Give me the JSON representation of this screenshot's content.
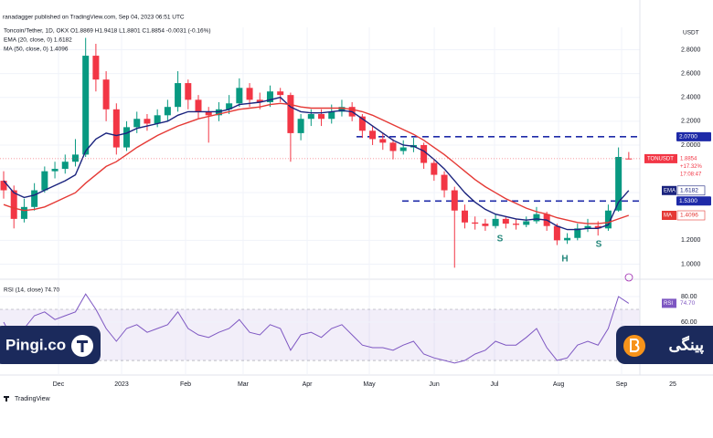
{
  "header": {
    "publisher": "ranadagger published on TradingView.com, Sep 04, 2023 06:51 UTC",
    "symbol": "Toncoin/Tether, 1D, OKX  O1.8869  H1.9418  L1.8801  C1.8854  -0.0031 (-0.16%)",
    "ema": "EMA (20, close, 0)  1.6182",
    "ma": "MA (50, close, 0)  1.4096",
    "currency": "USDT"
  },
  "chart_data": {
    "type": "candlestick",
    "up_color": "#089981",
    "down_color": "#f23645",
    "grid": true,
    "xlim": [
      -0.357,
      69.22
    ],
    "xticks": [
      {
        "value": 5.35,
        "label": "Dec"
      },
      {
        "value": 11.51,
        "label": "2023"
      },
      {
        "value": 17.75,
        "label": "Feb"
      },
      {
        "value": 23.37,
        "label": "Mar"
      },
      {
        "value": 29.62,
        "label": "Apr"
      },
      {
        "value": 35.68,
        "label": "May"
      },
      {
        "value": 42.02,
        "label": "Jun"
      },
      {
        "value": 47.9,
        "label": "Jul"
      },
      {
        "value": 54.15,
        "label": "Aug"
      },
      {
        "value": 60.3,
        "label": "Sep"
      },
      {
        "value": 65.3,
        "label": "25"
      }
    ],
    "ylim": [
      0.881,
      2.988
    ],
    "yticks": [
      {
        "value": 2.8,
        "label": "2.8000"
      },
      {
        "value": 2.6,
        "label": "2.6000"
      },
      {
        "value": 2.4,
        "label": "2.4000"
      },
      {
        "value": 2.2,
        "label": "2.2000"
      },
      {
        "value": 2,
        "label": "2.0000"
      },
      {
        "value": 1.8,
        "label": "1.8000"
      },
      {
        "value": 1.6,
        "label": "1.6000"
      },
      {
        "value": 1.4,
        "label": "1.4000"
      },
      {
        "value": 1.2,
        "label": "1.2000"
      },
      {
        "value": 1,
        "label": "1.0000"
      }
    ],
    "candles": [
      [
        1.7,
        1.78,
        1.55,
        1.62
      ],
      [
        1.62,
        1.66,
        1.3,
        1.38
      ],
      [
        1.38,
        1.55,
        1.35,
        1.48
      ],
      [
        1.48,
        1.68,
        1.45,
        1.62
      ],
      [
        1.62,
        1.82,
        1.6,
        1.78
      ],
      [
        1.78,
        1.86,
        1.72,
        1.8
      ],
      [
        1.8,
        1.92,
        1.76,
        1.86
      ],
      [
        1.86,
        2.05,
        1.82,
        1.92
      ],
      [
        1.92,
        2.9,
        1.9,
        2.75
      ],
      [
        2.75,
        2.85,
        2.45,
        2.55
      ],
      [
        2.55,
        2.62,
        2.2,
        2.3
      ],
      [
        2.3,
        2.35,
        1.92,
        1.98
      ],
      [
        1.98,
        2.2,
        1.95,
        2.15
      ],
      [
        2.15,
        2.28,
        2.1,
        2.22
      ],
      [
        2.22,
        2.26,
        2.12,
        2.18
      ],
      [
        2.18,
        2.3,
        2.15,
        2.25
      ],
      [
        2.25,
        2.38,
        2.2,
        2.32
      ],
      [
        2.32,
        2.62,
        2.28,
        2.52
      ],
      [
        2.52,
        2.55,
        2.3,
        2.38
      ],
      [
        2.38,
        2.42,
        2.22,
        2.28
      ],
      [
        2.28,
        2.32,
        2.02,
        2.25
      ],
      [
        2.25,
        2.36,
        2.2,
        2.3
      ],
      [
        2.3,
        2.42,
        2.26,
        2.35
      ],
      [
        2.35,
        2.56,
        2.32,
        2.48
      ],
      [
        2.48,
        2.52,
        2.32,
        2.38
      ],
      [
        2.38,
        2.44,
        2.3,
        2.36
      ],
      [
        2.36,
        2.5,
        2.32,
        2.45
      ],
      [
        2.45,
        2.48,
        2.36,
        2.42
      ],
      [
        2.42,
        2.44,
        1.86,
        2.1
      ],
      [
        2.1,
        2.26,
        2.04,
        2.22
      ],
      [
        2.22,
        2.3,
        2.16,
        2.26
      ],
      [
        2.26,
        2.3,
        2.16,
        2.22
      ],
      [
        2.22,
        2.34,
        2.18,
        2.28
      ],
      [
        2.28,
        2.38,
        2.24,
        2.32
      ],
      [
        2.32,
        2.36,
        2.2,
        2.24
      ],
      [
        2.24,
        2.26,
        2.06,
        2.12
      ],
      [
        2.12,
        2.16,
        2.0,
        2.05
      ],
      [
        2.05,
        2.1,
        1.96,
        2.02
      ],
      [
        2.02,
        2.05,
        1.88,
        1.95
      ],
      [
        1.95,
        2.04,
        1.92,
        1.98
      ],
      [
        1.98,
        2.06,
        1.94,
        2.0
      ],
      [
        2.0,
        2.02,
        1.8,
        1.85
      ],
      [
        1.85,
        1.88,
        1.7,
        1.75
      ],
      [
        1.75,
        1.78,
        1.56,
        1.62
      ],
      [
        1.62,
        1.65,
        0.97,
        1.45
      ],
      [
        1.45,
        1.5,
        1.3,
        1.35
      ],
      [
        1.35,
        1.4,
        1.29,
        1.34
      ],
      [
        1.34,
        1.38,
        1.28,
        1.32
      ],
      [
        1.32,
        1.42,
        1.3,
        1.38
      ],
      [
        1.38,
        1.4,
        1.3,
        1.34
      ],
      [
        1.34,
        1.38,
        1.29,
        1.33
      ],
      [
        1.33,
        1.4,
        1.31,
        1.36
      ],
      [
        1.36,
        1.48,
        1.34,
        1.42
      ],
      [
        1.42,
        1.44,
        1.28,
        1.32
      ],
      [
        1.32,
        1.34,
        1.16,
        1.2
      ],
      [
        1.2,
        1.26,
        1.17,
        1.22
      ],
      [
        1.22,
        1.34,
        1.2,
        1.3
      ],
      [
        1.3,
        1.38,
        1.27,
        1.32
      ],
      [
        1.32,
        1.36,
        1.24,
        1.3
      ],
      [
        1.3,
        1.5,
        1.28,
        1.45
      ],
      [
        1.45,
        1.98,
        1.44,
        1.9
      ],
      [
        1.8869,
        1.9418,
        1.8801,
        1.8854
      ]
    ],
    "series": [
      {
        "name": "EMA",
        "color": "#1a237e",
        "values": [
          1.7,
          1.6,
          1.56,
          1.58,
          1.62,
          1.66,
          1.7,
          1.75,
          1.95,
          2.05,
          2.1,
          2.08,
          2.1,
          2.14,
          2.16,
          2.18,
          2.2,
          2.25,
          2.28,
          2.28,
          2.28,
          2.28,
          2.3,
          2.34,
          2.35,
          2.36,
          2.38,
          2.4,
          2.32,
          2.28,
          2.27,
          2.27,
          2.28,
          2.29,
          2.28,
          2.22,
          2.16,
          2.1,
          2.04,
          2.0,
          1.99,
          1.95,
          1.88,
          1.8,
          1.7,
          1.6,
          1.52,
          1.46,
          1.42,
          1.4,
          1.38,
          1.37,
          1.38,
          1.37,
          1.32,
          1.29,
          1.29,
          1.3,
          1.3,
          1.33,
          1.52,
          1.6182
        ],
        "value_label": "1.6182"
      },
      {
        "name": "MA",
        "color": "#e53935",
        "values": [
          1.5,
          1.47,
          1.45,
          1.46,
          1.48,
          1.52,
          1.56,
          1.6,
          1.68,
          1.75,
          1.82,
          1.86,
          1.92,
          1.98,
          2.03,
          2.08,
          2.12,
          2.16,
          2.19,
          2.22,
          2.24,
          2.26,
          2.28,
          2.3,
          2.31,
          2.32,
          2.34,
          2.35,
          2.34,
          2.32,
          2.31,
          2.31,
          2.31,
          2.31,
          2.3,
          2.28,
          2.25,
          2.21,
          2.17,
          2.13,
          2.09,
          2.04,
          1.98,
          1.92,
          1.85,
          1.78,
          1.71,
          1.65,
          1.6,
          1.55,
          1.51,
          1.47,
          1.44,
          1.42,
          1.39,
          1.37,
          1.35,
          1.34,
          1.34,
          1.35,
          1.38,
          1.4096
        ],
        "value_label": "1.4096"
      }
    ],
    "levels": [
      {
        "value": 2.07,
        "label": "2.0700",
        "color": "#1e2aa8"
      },
      {
        "value": 1.53,
        "label": "1.5300",
        "color": "#1e2aa8"
      }
    ],
    "last_price": {
      "symbol": "TONUSDT",
      "value": 1.8854,
      "label": "1.8854",
      "change": "+17.32%",
      "countdown": "17:08:47",
      "color": "#f23645"
    },
    "annotations": [
      "S",
      "H",
      "S"
    ],
    "rsi": {
      "title": "RSI (14, close)  74.70",
      "name": "RSI",
      "color": "#7e57c2",
      "ylim": [
        19.3,
        90.7
      ],
      "yticks": [
        {
          "value": 80,
          "label": "80.00"
        },
        {
          "value": 60,
          "label": "60.00"
        }
      ],
      "bands": [
        30,
        70
      ],
      "values": [
        60,
        45,
        55,
        65,
        68,
        62,
        65,
        68,
        82,
        70,
        55,
        45,
        55,
        58,
        52,
        55,
        58,
        68,
        55,
        50,
        48,
        52,
        55,
        62,
        52,
        50,
        58,
        55,
        38,
        50,
        52,
        48,
        55,
        58,
        50,
        42,
        40,
        40,
        38,
        42,
        45,
        35,
        32,
        30,
        28,
        30,
        35,
        38,
        45,
        42,
        42,
        48,
        55,
        40,
        30,
        32,
        42,
        45,
        42,
        55,
        80,
        74.7
      ],
      "value_label": "74.70"
    }
  },
  "footer": {
    "brand": "TradingView"
  },
  "watermark": {
    "left": "Pingi.co",
    "right": "پینگی"
  }
}
